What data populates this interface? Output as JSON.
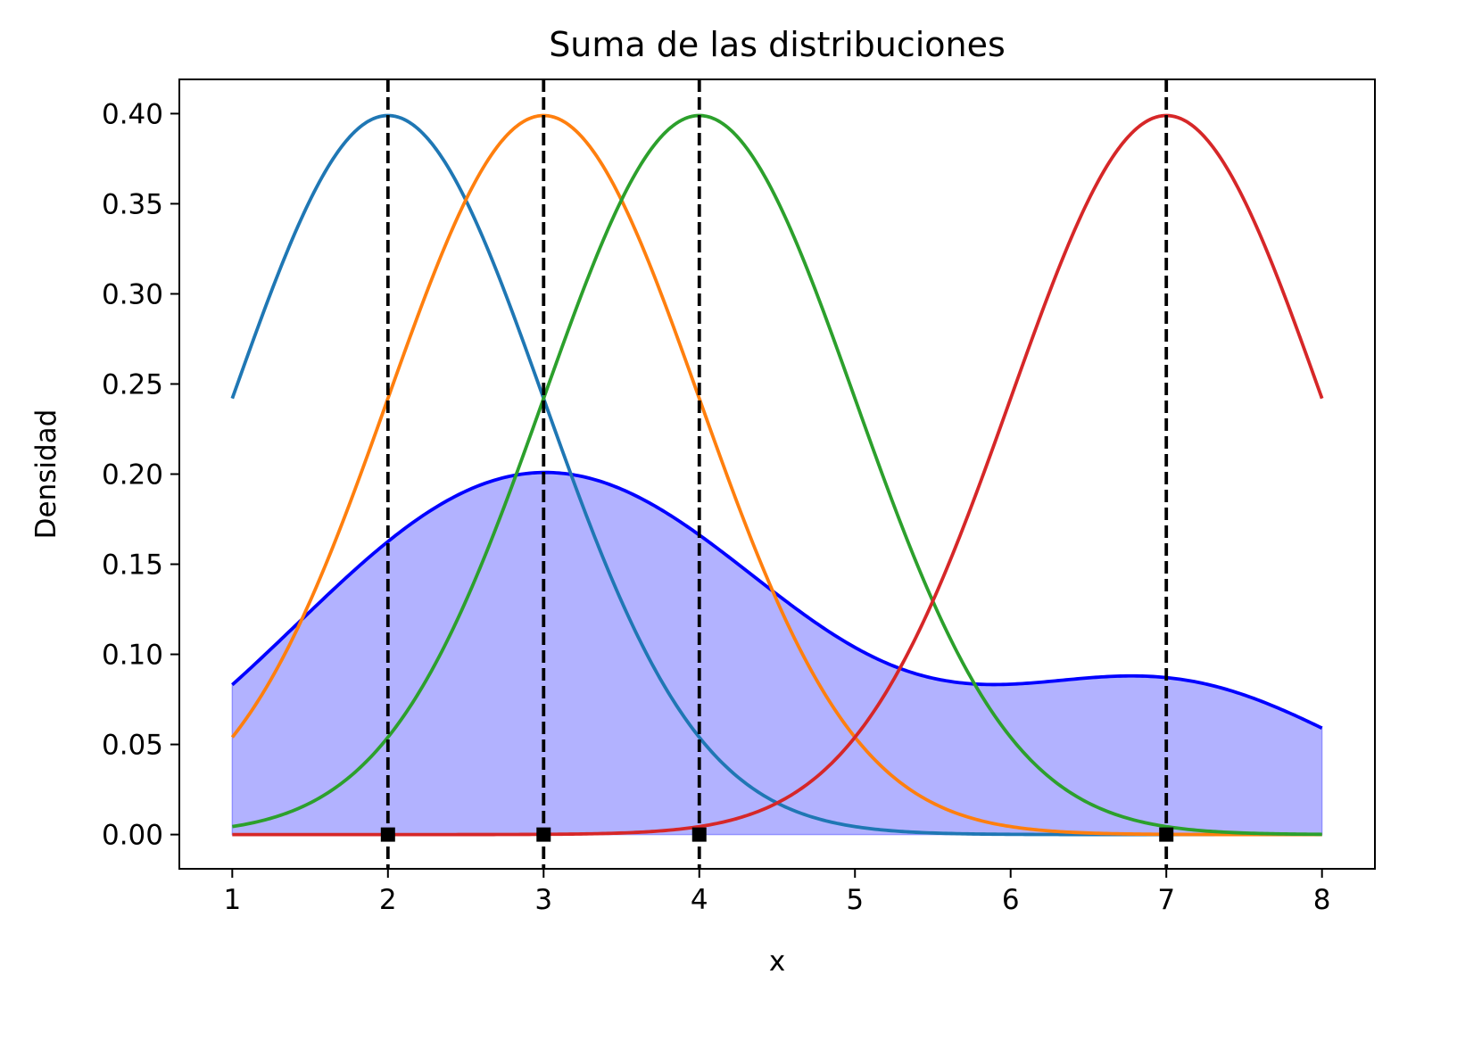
{
  "chart_data": {
    "type": "line",
    "title": "Suma de las distribuciones",
    "xlabel": "x",
    "ylabel": "Densidad",
    "xlim": [
      0.66,
      8.34
    ],
    "ylim": [
      -0.019,
      0.419
    ],
    "xticks": [
      "1",
      "2",
      "3",
      "4",
      "5",
      "6",
      "7",
      "8"
    ],
    "yticks": [
      "0.00",
      "0.05",
      "0.10",
      "0.15",
      "0.20",
      "0.25",
      "0.30",
      "0.35",
      "0.40"
    ],
    "grid": false,
    "x_range": [
      1,
      8
    ],
    "series": [
      {
        "kind": "normal-pdf",
        "mean": 2,
        "sd": 1,
        "color": "#1f77b4"
      },
      {
        "kind": "normal-pdf",
        "mean": 3,
        "sd": 1,
        "color": "#ff7f0e"
      },
      {
        "kind": "normal-pdf",
        "mean": 4,
        "sd": 1,
        "color": "#2ca02c"
      },
      {
        "kind": "normal-pdf",
        "mean": 7,
        "sd": 1,
        "color": "#d62728"
      },
      {
        "kind": "mixture-density",
        "components": [
          2,
          3,
          4,
          7
        ],
        "bandwidth": 1.2,
        "color": "#0000ff",
        "fill": "#0000ff",
        "fill_opacity": 0.3
      }
    ],
    "vertical_lines": [
      {
        "x": 2,
        "style": "dashed",
        "color": "#000000"
      },
      {
        "x": 3,
        "style": "dashed",
        "color": "#000000"
      },
      {
        "x": 4,
        "style": "dashed",
        "color": "#000000"
      },
      {
        "x": 7,
        "style": "dashed",
        "color": "#000000"
      }
    ],
    "points": [
      {
        "x": 2,
        "y": 0
      },
      {
        "x": 3,
        "y": 0
      },
      {
        "x": 4,
        "y": 0
      },
      {
        "x": 7,
        "y": 0
      }
    ]
  }
}
